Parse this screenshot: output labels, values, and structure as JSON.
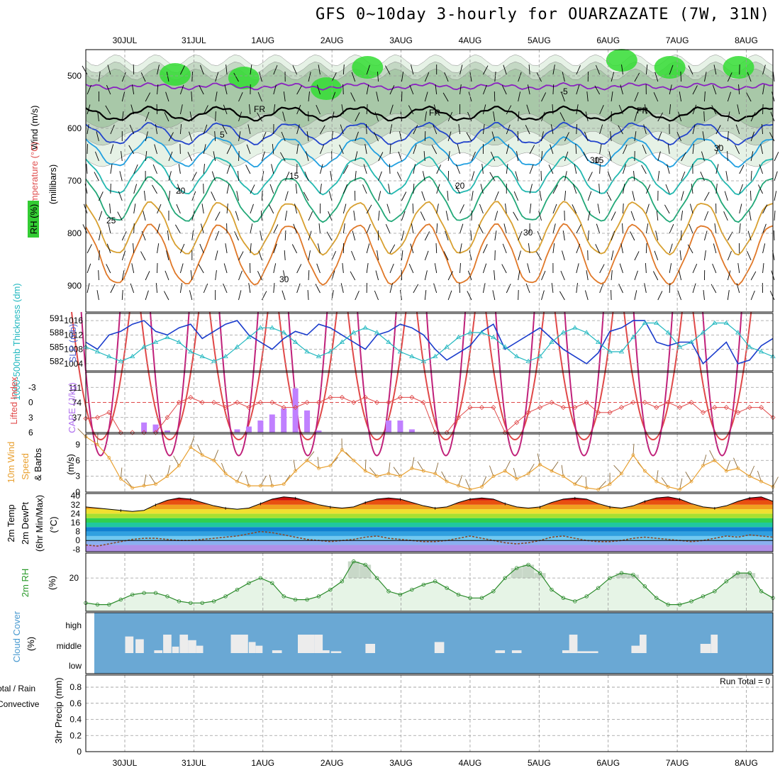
{
  "title": "GFS 0~10day 3-hourly for OUARZAZATE (7W, 31N)",
  "dates": [
    "30JUL",
    "31JUL",
    "1AUG",
    "2AUG",
    "3AUG",
    "4AUG",
    "5AUG",
    "6AUG",
    "7AUG",
    "8AUG"
  ],
  "chart_data": [
    {
      "type": "contour",
      "panel": "upper-air",
      "ylabel_wind": "Wind (m/s)",
      "ylabel_temp": "Temperature (°C)",
      "ylabel_rh": "RH (%)",
      "ylabel_pressure": "(millibars)",
      "yticks": [
        "500",
        "600",
        "700",
        "800",
        "900"
      ],
      "ylim": [
        950,
        450
      ],
      "contour_labels": [
        "-5",
        "FR",
        "FR",
        "FR",
        "5",
        "15",
        "15",
        "20",
        "20",
        "25",
        "30",
        "30",
        "30",
        "30"
      ],
      "isotherms": [
        {
          "label": "-5",
          "pressure": 520,
          "color": "#8a22c0"
        },
        {
          "label": "0",
          "pressure": 572,
          "color": "#000000"
        },
        {
          "label": "5",
          "pressure": 610,
          "color": "#2244cc"
        },
        {
          "label": "10",
          "pressure": 645,
          "color": "#22a0e0"
        },
        {
          "label": "15",
          "pressure": 690,
          "color": "#22b8b0"
        },
        {
          "label": "20",
          "pressure": 735,
          "color": "#22a878"
        },
        {
          "label": "25",
          "pressure": 790,
          "color": "#d8a030"
        },
        {
          "label": "30",
          "pressure": 840,
          "color": "#e07828"
        }
      ]
    },
    {
      "type": "line",
      "panel": "thickness-slp",
      "ylabel_left": "1000-500mb Thickness (dm)",
      "ylabel_right": "SLP (mb)",
      "yticks_left": [
        "591",
        "588",
        "585",
        "582"
      ],
      "yticks_right": [
        "1016",
        "1012",
        "1008",
        "1004"
      ],
      "series": [
        {
          "name": "SLP",
          "unit": "mb",
          "values": [
            1010,
            1008,
            1012,
            1013,
            1015,
            1016,
            1013,
            1012,
            1014,
            1015,
            1011,
            1013,
            1015,
            1016,
            1012,
            1010,
            1008,
            1011,
            1013,
            1012,
            1015,
            1014,
            1012,
            1010,
            1008,
            1012,
            1013,
            1015,
            1014,
            1012,
            1008,
            1005,
            1007,
            1009,
            1013,
            1015,
            1008,
            1010,
            1012,
            1014,
            1011,
            1008,
            1006,
            1004,
            1007,
            1013,
            1014,
            1016,
            1016,
            1010,
            1009,
            1010,
            1010,
            1004,
            1007,
            1010,
            1004,
            1005,
            1009,
            1011
          ]
        },
        {
          "name": "Thickness",
          "unit": "dm",
          "values": [
            585,
            584,
            583,
            582,
            583,
            585,
            586,
            587,
            586,
            584,
            583,
            582,
            583,
            585,
            587,
            589,
            589,
            588,
            586,
            584,
            583,
            584,
            586,
            588,
            589,
            588,
            586,
            584,
            583,
            582,
            583,
            585,
            587,
            588,
            588,
            587,
            585,
            583,
            582,
            583,
            586,
            588,
            589,
            588,
            586,
            584,
            584,
            587,
            590,
            590,
            588,
            585,
            586,
            588,
            590,
            590,
            588,
            585,
            584,
            583
          ]
        }
      ]
    },
    {
      "type": "bar-line",
      "panel": "lifted-index-cape",
      "ylabel_left": "Lifted Index",
      "ylabel_right": "CAPE (J/kg)",
      "yticks_left": [
        "-3",
        "0",
        "3",
        "6"
      ],
      "yticks_right": [
        "111",
        "74",
        "37"
      ],
      "series": [
        {
          "name": "Lifted Index",
          "values": [
            3.2,
            3,
            2,
            6,
            6,
            6,
            6,
            3,
            0,
            -1,
            0,
            0,
            1,
            0,
            1,
            0,
            0,
            1,
            1,
            0,
            0,
            -1,
            -1,
            0,
            -1,
            0,
            0,
            -1,
            -1,
            0,
            6,
            6,
            3,
            1,
            1,
            1,
            6,
            4,
            2,
            1,
            0,
            1,
            1,
            0,
            2,
            2,
            1,
            0,
            0,
            1,
            0,
            1,
            0,
            2,
            1,
            1,
            2,
            1,
            1,
            3
          ]
        },
        {
          "name": "CAPE",
          "values": [
            0,
            0,
            0,
            0,
            0,
            25,
            20,
            5,
            0,
            0,
            0,
            0,
            0,
            8,
            15,
            30,
            45,
            60,
            110,
            55,
            5,
            0,
            0,
            0,
            0,
            0,
            30,
            30,
            8,
            0,
            0,
            0,
            0,
            0,
            0,
            0,
            0,
            0,
            0,
            0,
            0,
            0,
            0,
            0,
            0,
            0,
            0,
            0,
            0,
            0,
            0,
            0,
            0,
            0,
            0,
            0,
            0,
            0,
            0,
            0
          ]
        }
      ]
    },
    {
      "type": "line",
      "panel": "10m-wind",
      "ylabel": "10m Wind Speed (m/s) & Barbs",
      "yticks": [
        "9",
        "6",
        "3",
        "0"
      ],
      "ylim": [
        0,
        11
      ],
      "values": [
        10.5,
        9,
        6.5,
        2.5,
        0.8,
        1.2,
        1.5,
        3,
        5,
        8.5,
        7,
        6,
        3.5,
        2,
        1.2,
        1.2,
        1.2,
        1.5,
        4,
        6,
        4.5,
        5,
        8,
        6,
        4,
        3,
        3.5,
        3,
        4.5,
        4,
        3.5,
        2,
        1.2,
        0.5,
        1,
        3,
        4,
        2.5,
        3.5,
        5.2,
        4,
        3,
        1.5,
        0.8,
        0.5,
        1.5,
        3.5,
        7,
        4,
        2,
        1,
        0.5,
        2,
        5,
        6,
        4,
        4.5,
        3,
        2,
        1
      ]
    },
    {
      "type": "area",
      "panel": "2m-temp",
      "ylabel": "2m Temp 2m DewPt (6hr Min/Max) (°C)",
      "yticks": [
        "40",
        "32",
        "24",
        "16",
        "8",
        "0",
        "-8"
      ],
      "ylim": [
        -10,
        42
      ],
      "temp": [
        30,
        29,
        28,
        27,
        26,
        27,
        32,
        36,
        38,
        37,
        34,
        31,
        29,
        28,
        29,
        33,
        37,
        39,
        38,
        35,
        32,
        30,
        29,
        30,
        34,
        37,
        38,
        37,
        34,
        31,
        29,
        30,
        34,
        37,
        38,
        37,
        33,
        30,
        29,
        30,
        34,
        37,
        38,
        37,
        33,
        30,
        29,
        31,
        35,
        38,
        39,
        37,
        33,
        30,
        29,
        31,
        35,
        38,
        39,
        35
      ],
      "dewpt": [
        -4,
        -5,
        -3,
        -1,
        1,
        2,
        2,
        1,
        0,
        0,
        1,
        2,
        3,
        4,
        6,
        8,
        7,
        5,
        3,
        1,
        0,
        -1,
        0,
        1,
        3,
        4,
        2,
        1,
        0,
        -1,
        -1,
        0,
        2,
        4,
        2,
        0,
        -2,
        -3,
        -2,
        0,
        3,
        4,
        2,
        0,
        -1,
        -1,
        0,
        2,
        3,
        2,
        1,
        0,
        -1,
        0,
        2,
        4,
        3,
        5,
        4,
        3
      ]
    },
    {
      "type": "area",
      "panel": "2m-rh",
      "ylabel": "2m RH (%)",
      "yticks": [
        "20"
      ],
      "ylim": [
        0,
        35
      ],
      "values": [
        5,
        4,
        4,
        7,
        10,
        11,
        11,
        9,
        6,
        5,
        5,
        6,
        9,
        13,
        17,
        20,
        17,
        9,
        7,
        7,
        9,
        13,
        18,
        30,
        28,
        20,
        12,
        10,
        13,
        16,
        18,
        14,
        10,
        8,
        8,
        12,
        20,
        26,
        28,
        23,
        13,
        8,
        6,
        9,
        14,
        20,
        23,
        22,
        15,
        8,
        4,
        4,
        6,
        9,
        12,
        18,
        23,
        23,
        12,
        8
      ]
    },
    {
      "type": "bar",
      "panel": "cloud-cover",
      "ylabel": "Cloud Cover (%)",
      "yticks": [
        "high",
        "middle",
        "low"
      ],
      "middle": [
        0,
        0,
        0,
        0,
        0,
        0,
        0,
        0,
        0,
        0,
        0,
        0,
        0,
        0,
        0,
        0,
        0,
        0,
        0,
        0,
        0,
        0,
        0,
        0,
        0,
        0,
        0,
        0,
        0,
        0,
        0,
        0,
        0,
        0,
        0,
        0,
        0,
        0,
        0,
        0,
        0,
        0,
        0,
        0,
        0,
        0,
        0,
        0,
        0,
        0,
        0,
        0,
        0,
        0,
        0,
        0,
        0,
        0,
        0,
        0
      ],
      "bars": [
        {
          "x": 0.57,
          "w": 0.12,
          "h": 0.9
        },
        {
          "x": 0.72,
          "w": 0.12,
          "h": 0.75
        },
        {
          "x": 0.99,
          "w": 0.12,
          "h": 0.15
        },
        {
          "x": 1.12,
          "w": 0.12,
          "h": 1.0
        },
        {
          "x": 1.25,
          "w": 0.1,
          "h": 0.35
        },
        {
          "x": 1.36,
          "w": 0.12,
          "h": 1.0
        },
        {
          "x": 1.48,
          "w": 0.12,
          "h": 0.7
        },
        {
          "x": 1.6,
          "w": 0.1,
          "h": 0.4
        },
        {
          "x": 2.1,
          "w": 0.25,
          "h": 1.0
        },
        {
          "x": 2.36,
          "w": 0.1,
          "h": 0.6
        },
        {
          "x": 2.46,
          "w": 0.1,
          "h": 0.4
        },
        {
          "x": 2.7,
          "w": 0.14,
          "h": 0.15
        },
        {
          "x": 3.07,
          "w": 0.24,
          "h": 1.0
        },
        {
          "x": 3.31,
          "w": 0.12,
          "h": 1.0
        },
        {
          "x": 3.43,
          "w": 0.1,
          "h": 0.15
        },
        {
          "x": 3.55,
          "w": 0.15,
          "h": 0.1
        },
        {
          "x": 4.05,
          "w": 0.14,
          "h": 0.5
        },
        {
          "x": 5.05,
          "w": 0.14,
          "h": 0.6
        },
        {
          "x": 5.93,
          "w": 0.14,
          "h": 0.15
        },
        {
          "x": 6.17,
          "w": 0.14,
          "h": 0.15
        },
        {
          "x": 6.9,
          "w": 0.1,
          "h": 0.15
        },
        {
          "x": 7.0,
          "w": 0.12,
          "h": 1.0
        },
        {
          "x": 7.12,
          "w": 0.3,
          "h": 0.1
        },
        {
          "x": 7.9,
          "w": 0.12,
          "h": 0.4
        },
        {
          "x": 8.02,
          "w": 0.1,
          "h": 1.0
        },
        {
          "x": 8.9,
          "w": 0.15,
          "h": 0.5
        },
        {
          "x": 9.05,
          "w": 0.1,
          "h": 1.0
        }
      ]
    },
    {
      "type": "bar",
      "panel": "precip",
      "ylabel_top": "Total / Rain",
      "ylabel_mid": "Convective",
      "ylabel": "3hr Precip (mm)",
      "yticks": [
        "0.8",
        "0.6",
        "0.4",
        "0.2",
        "0"
      ],
      "ylim": [
        0,
        1
      ],
      "run_total": "Run Total = 0",
      "values": []
    }
  ]
}
